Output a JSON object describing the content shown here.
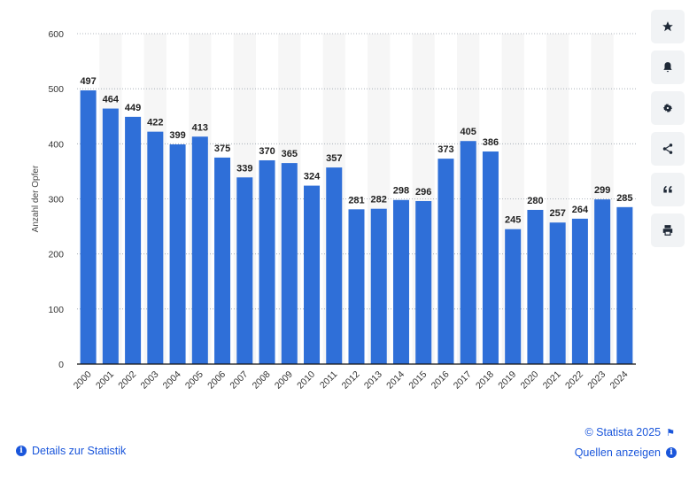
{
  "chart_data": {
    "type": "bar",
    "ylabel": "Anzahl der Opfer",
    "xlabel": "",
    "ylim": [
      0,
      600
    ],
    "yticks": [
      0,
      100,
      200,
      300,
      400,
      500,
      600
    ],
    "categories": [
      "2000",
      "2001",
      "2002",
      "2003",
      "2004",
      "2005",
      "2006",
      "2007",
      "2008",
      "2009",
      "2010",
      "2011",
      "2012",
      "2013",
      "2014",
      "2015",
      "2016",
      "2017",
      "2018",
      "2019",
      "2020",
      "2021",
      "2022",
      "2023",
      "2024"
    ],
    "values": [
      497,
      464,
      449,
      422,
      399,
      413,
      375,
      339,
      370,
      365,
      324,
      357,
      281,
      282,
      298,
      296,
      373,
      405,
      386,
      245,
      280,
      257,
      264,
      299,
      285
    ],
    "bar_color": "#2f6fd8",
    "grid": true,
    "data_labels": true
  },
  "toolbar": {
    "items": [
      {
        "name": "star-icon"
      },
      {
        "name": "bell-icon"
      },
      {
        "name": "gear-icon"
      },
      {
        "name": "share-icon"
      },
      {
        "name": "quote-icon"
      },
      {
        "name": "print-icon"
      }
    ]
  },
  "footer": {
    "details_label": "Details zur Statistik",
    "copyright": "© Statista 2025",
    "sources_label": "Quellen anzeigen"
  },
  "colors": {
    "accent": "#1a56db",
    "bar": "#2f6fd8",
    "stripe": "#f6f6f6"
  }
}
